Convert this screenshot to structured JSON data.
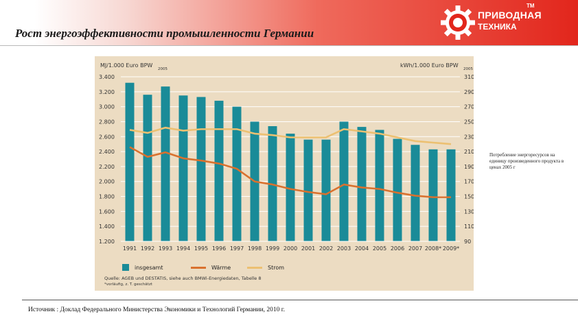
{
  "header": {
    "title": "Рост энергоэффективности промышленности Германии",
    "logo_line1": "ПРИВОДНАЯ",
    "logo_line2": "ТЕХНИКА",
    "logo_tm": "TM",
    "logo_icon": "gear-icon"
  },
  "side_note": "Потребление энергоресурсов на единицу произведенного продукта в ценах 2005 г",
  "footer": {
    "source": "Источник : Доклад Федерального Министерства Экономики и Технологий Германии, 2010 г."
  },
  "colors": {
    "bar": "#1a8b98",
    "waerme": "#d9712e",
    "strom": "#ecc071",
    "panel": "#ecdcc2",
    "header_red": "#e2261c"
  },
  "chart_data": {
    "type": "bar",
    "left_axis_label": "MJ/1.000 Euro BPW",
    "left_axis_label_sub": "2005",
    "right_axis_label": "kWh/1.000 Euro BPW",
    "right_axis_label_sub": "2005",
    "categories": [
      "1991",
      "1992",
      "1993",
      "1994",
      "1995",
      "1996",
      "1997",
      "1998",
      "1999",
      "2000",
      "2001",
      "2002",
      "2003",
      "2004",
      "2005",
      "2006",
      "2007",
      "2008*",
      "2009*"
    ],
    "ylim_left": [
      1200,
      3400
    ],
    "yticks_left": [
      "3.400",
      "3.200",
      "3.000",
      "2.800",
      "2.600",
      "2.400",
      "2.200",
      "2.000",
      "1.800",
      "1.600",
      "1.400",
      "1.200"
    ],
    "ylim_right": [
      90,
      310
    ],
    "yticks_right": [
      "310",
      "290",
      "270",
      "250",
      "230",
      "210",
      "190",
      "170",
      "150",
      "130",
      "110",
      "90"
    ],
    "series": [
      {
        "name": "insgesamt",
        "type": "bar",
        "axis": "left",
        "values": [
          3320,
          3160,
          3270,
          3150,
          3130,
          3080,
          3000,
          2800,
          2740,
          2640,
          2560,
          2560,
          2800,
          2730,
          2690,
          2570,
          2490,
          2430,
          2430
        ]
      },
      {
        "name": "Wärme",
        "type": "line",
        "axis": "left",
        "values": [
          2460,
          2330,
          2390,
          2310,
          2280,
          2240,
          2170,
          2000,
          1960,
          1900,
          1860,
          1830,
          1960,
          1920,
          1900,
          1850,
          1810,
          1790,
          1790
        ]
      },
      {
        "name": "Strom",
        "type": "line",
        "axis": "right",
        "values": [
          239,
          235,
          242,
          238,
          240,
          240,
          240,
          234,
          232,
          229,
          229,
          229,
          240,
          237,
          234,
          229,
          224,
          222,
          220
        ]
      }
    ],
    "source_line1": "Quelle: AGEB und DESTATIS, siehe auch BMWi-Energiedaten, Tabelle 8",
    "source_line2": "*vorläufig, z. T. geschätzt"
  }
}
